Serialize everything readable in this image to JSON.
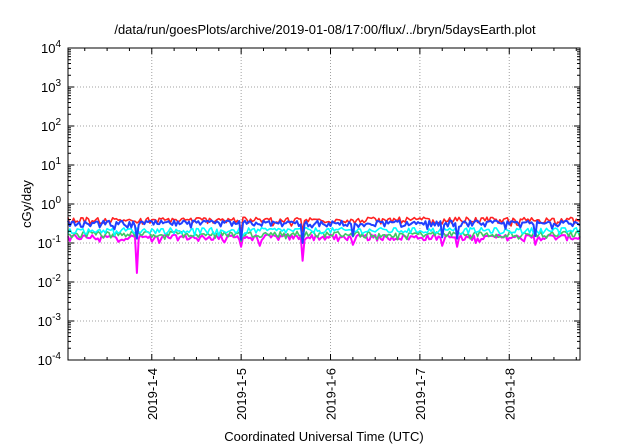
{
  "chart_data": {
    "type": "line",
    "title": "/data/run/goesPlots/archive/2019-01-08/17:00/flux/../bryn/5daysEarth.plot",
    "xlabel": "Coordinated Universal Time (UTC)",
    "ylabel": "cGy/day",
    "yscale": "log",
    "ylim": [
      0.0001,
      10000
    ],
    "xlim": [
      "2019-01-03 01:30",
      "2019-01-08 19:00"
    ],
    "x_ticks": [
      {
        "date": "2019-01-04",
        "label": "2019-1-4"
      },
      {
        "date": "2019-01-05",
        "label": "2019-1-5"
      },
      {
        "date": "2019-01-06",
        "label": "2019-1-6"
      },
      {
        "date": "2019-01-07",
        "label": "2019-1-7"
      },
      {
        "date": "2019-01-08",
        "label": "2019-1-8"
      }
    ],
    "y_ticks": [
      {
        "exp": "4"
      },
      {
        "exp": "3"
      },
      {
        "exp": "2"
      },
      {
        "exp": "1"
      },
      {
        "exp": "0"
      },
      {
        "exp": "-1"
      },
      {
        "exp": "-2"
      },
      {
        "exp": "-3"
      },
      {
        "exp": "-4"
      }
    ],
    "grid": true,
    "series": [
      {
        "color": "#ff00ff",
        "base": 0.14,
        "values_note": "",
        "dips": [
          [
            "2019-01-03 20:00",
            0.017
          ],
          [
            "2019-01-05 00:00",
            0.08
          ],
          [
            "2019-01-05 05:00",
            0.085
          ],
          [
            "2019-01-05 16:30",
            0.035
          ],
          [
            "2019-01-06 06:00",
            0.09
          ],
          [
            "2019-01-07 06:00",
            0.085
          ],
          [
            "2019-01-07 10:00",
            0.08
          ],
          [
            "2019-01-07 15:00",
            0.1
          ],
          [
            "2019-01-08 07:00",
            0.09
          ]
        ]
      },
      {
        "color": "#3ec864",
        "base": 0.17,
        "values_note": "",
        "dips": [
          [
            "2019-01-05 00:00",
            0.11
          ],
          [
            "2019-01-05 16:30",
            0.12
          ]
        ]
      },
      {
        "color": "#00ffff",
        "base": 0.21,
        "values_note": "",
        "dips": [
          [
            "2019-01-05 00:00",
            0.13
          ],
          [
            "2019-01-05 16:30",
            0.14
          ]
        ]
      },
      {
        "color": "#ff2020",
        "base": 0.39,
        "values_note": "",
        "dips": [
          [
            "2019-01-05 00:00",
            0.17
          ],
          [
            "2019-01-05 16:30",
            0.2
          ]
        ]
      },
      {
        "color": "#2040ff",
        "base": 0.32,
        "values_note": "",
        "dips": [
          [
            "2019-01-03 20:00",
            0.13
          ],
          [
            "2019-01-05 00:00",
            0.12
          ],
          [
            "2019-01-05 16:30",
            0.1
          ],
          [
            "2019-01-06 06:00",
            0.15
          ],
          [
            "2019-01-07 06:00",
            0.14
          ],
          [
            "2019-01-07 10:00",
            0.13
          ],
          [
            "2019-01-08 07:00",
            0.15
          ]
        ]
      }
    ]
  }
}
